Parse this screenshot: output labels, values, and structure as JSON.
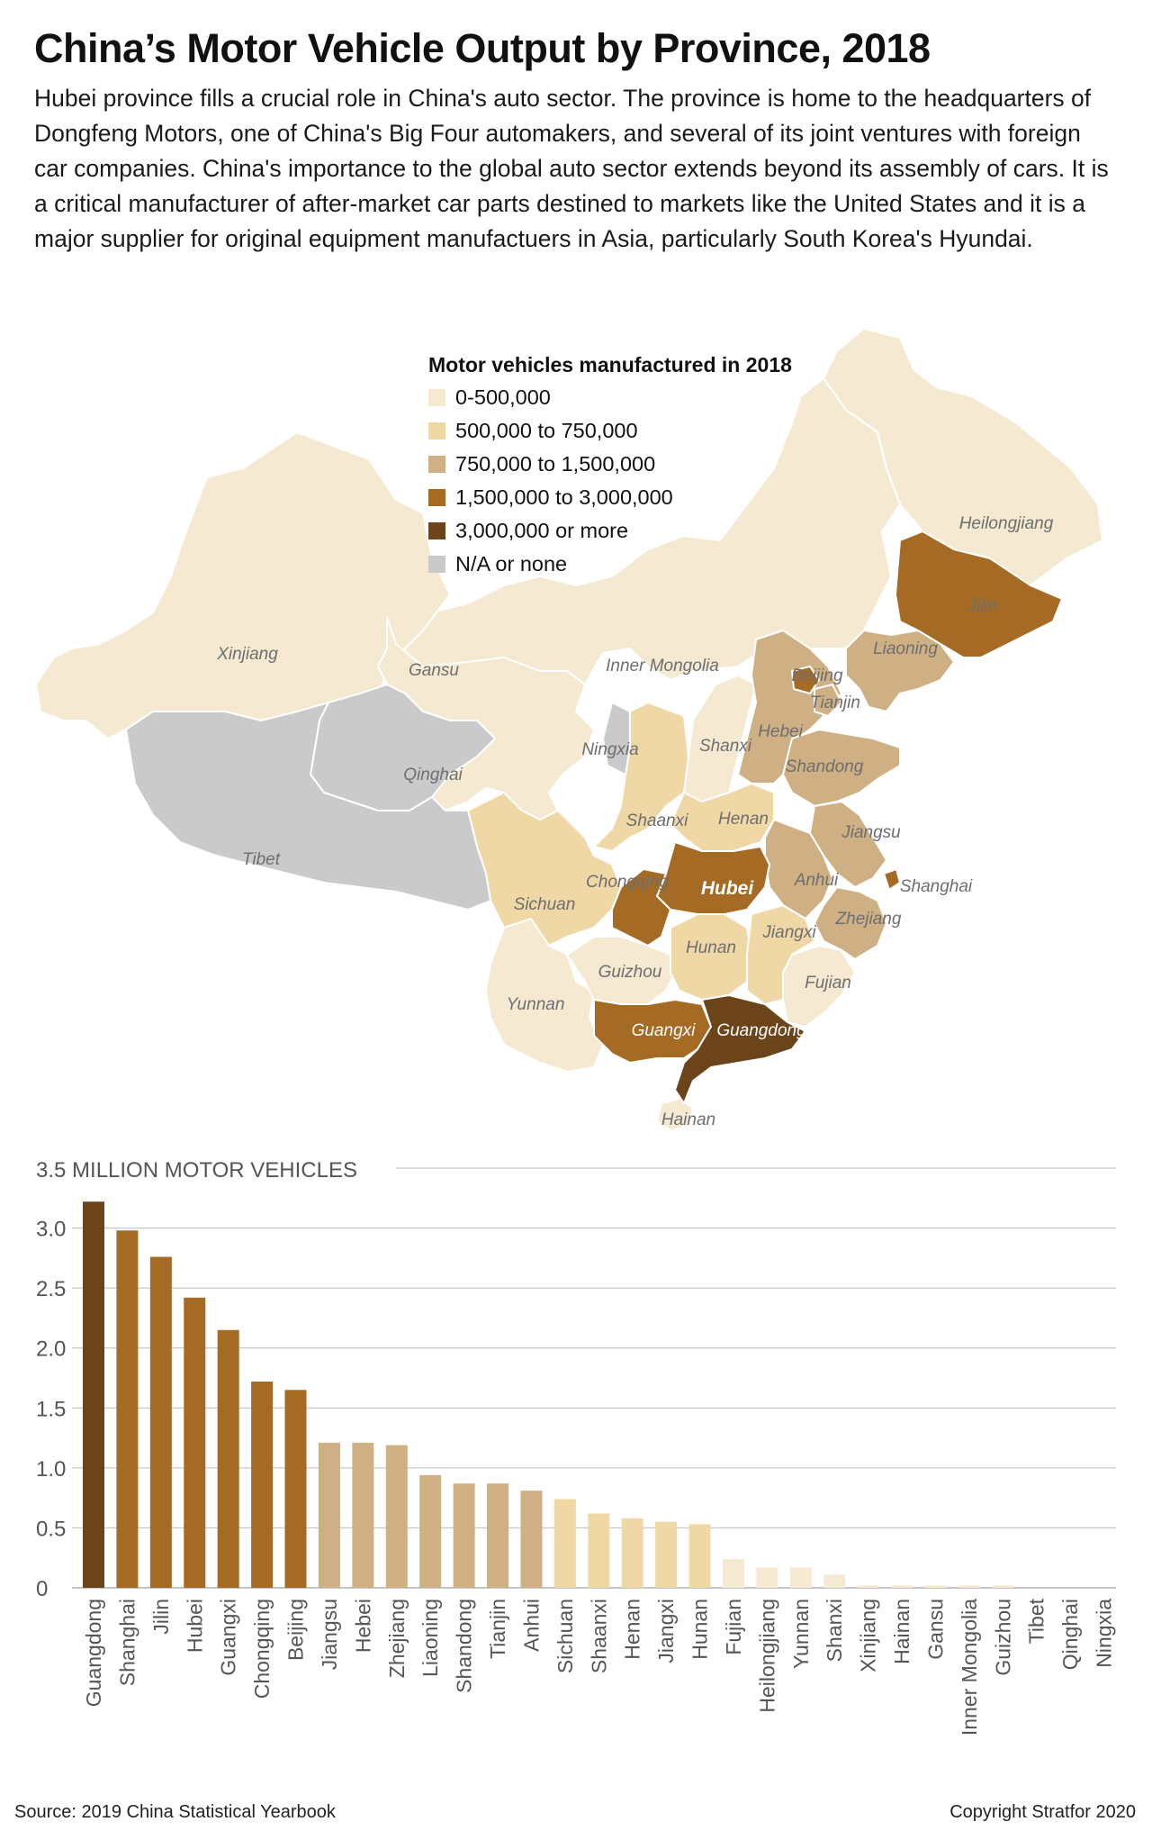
{
  "title": "China’s Motor Vehicle Output by Province, 2018",
  "intro": "Hubei province fills a crucial role in China's auto sector. The province is home to the headquarters of Dongfeng Motors, one of China's Big Four automakers, and several of its joint ventures with foreign car companies. China's importance to the global auto sector extends beyond its assembly of cars. It is a critical manufacturer of after-market car parts destined to markets like the United States and it is a major supplier for original equipment manufactuers in Asia, particularly South Korea's Hyundai.",
  "legend": {
    "title": "Motor vehicles manufactured in 2018",
    "items": [
      {
        "label": "0-500,000",
        "color": "#f5ead1"
      },
      {
        "label": "500,000 to 750,000",
        "color": "#f0d8a6"
      },
      {
        "label": "750,000 to 1,500,000",
        "color": "#cfb084"
      },
      {
        "label": "1,500,000 to 3,000,000",
        "color": "#a56a24"
      },
      {
        "label": "3,000,000 or more",
        "color": "#6b4419"
      },
      {
        "label": "N/A or none",
        "color": "#cacaca"
      }
    ]
  },
  "map": {
    "province_labels": {
      "heilongjiang": "Heilongjiang",
      "jilin": "Jilin",
      "liaoning": "Liaoning",
      "beijing": "Beijing",
      "tianjin": "Tianjin",
      "hebei": "Hebei",
      "shandong": "Shandong",
      "inner_mongolia": "Inner Mongolia",
      "xinjiang": "Xinjiang",
      "gansu": "Gansu",
      "ningxia": "Ningxia",
      "shanxi": "Shanxi",
      "qinghai": "Qinghai",
      "tibet": "Tibet",
      "shaanxi": "Shaanxi",
      "henan": "Henan",
      "jiangsu": "Jiangsu",
      "anhui": "Anhui",
      "shanghai": "Shanghai",
      "hubei": "Hubei",
      "chongqing": "Chongqing",
      "sichuan": "Sichuan",
      "zhejiang": "Zhejiang",
      "jiangxi": "Jiangxi",
      "hunan": "Hunan",
      "guizhou": "Guizhou",
      "fujian": "Fujian",
      "yunnan": "Yunnan",
      "guangxi": "Guangxi",
      "guangdong": "Guangdong",
      "hainan": "Hainan"
    }
  },
  "chart_data": {
    "type": "bar",
    "title": "",
    "ylabel": "3.5 MILLION MOTOR VEHICLES",
    "ylim": [
      0,
      3.5
    ],
    "yticks": [
      0,
      0.5,
      1.0,
      1.5,
      2.0,
      2.5,
      3.0,
      3.5
    ],
    "ytick_labels": [
      "0",
      "0.5",
      "1.0",
      "1.5",
      "2.0",
      "2.5",
      "3.0",
      "3.5"
    ],
    "grid": true,
    "categories": [
      "Guangdong",
      "Shanghai",
      "Jilin",
      "Hubei",
      "Guangxi",
      "Chongqing",
      "Beijing",
      "Jiangsu",
      "Hebei",
      "Zhejiang",
      "Liaoning",
      "Shandong",
      "Tianjin",
      "Anhui",
      "Sichuan",
      "Shaanxi",
      "Henan",
      "Jiangxi",
      "Hunan",
      "Fujian",
      "Heilongjiang",
      "Yunnan",
      "Shanxi",
      "Xinjiang",
      "Hainan",
      "Gansu",
      "Inner Mongolia",
      "Guizhou",
      "Tibet",
      "Qinghai",
      "Ningxia"
    ],
    "values": [
      3.22,
      2.98,
      2.76,
      2.42,
      2.15,
      1.72,
      1.65,
      1.21,
      1.21,
      1.19,
      0.94,
      0.87,
      0.87,
      0.81,
      0.74,
      0.62,
      0.58,
      0.55,
      0.53,
      0.24,
      0.17,
      0.17,
      0.11,
      0.02,
      0.02,
      0.02,
      0.02,
      0.02,
      0,
      0,
      0
    ],
    "bar_colors": [
      "#6b4419",
      "#a56a24",
      "#a56a24",
      "#a56a24",
      "#a56a24",
      "#a56a24",
      "#a56a24",
      "#cfb084",
      "#cfb084",
      "#cfb084",
      "#cfb084",
      "#cfb084",
      "#cfb084",
      "#cfb084",
      "#f0d8a6",
      "#f0d8a6",
      "#f0d8a6",
      "#f0d8a6",
      "#f0d8a6",
      "#f5ead1",
      "#f5ead1",
      "#f5ead1",
      "#f5ead1",
      "#f5ead1",
      "#f5ead1",
      "#f5ead1",
      "#f5ead1",
      "#f5ead1",
      "#f5ead1",
      "#f5ead1",
      "#f5ead1"
    ]
  },
  "footer": {
    "source": "Source: 2019 China Statistical Yearbook",
    "copyright": "Copyright Stratfor 2020"
  }
}
